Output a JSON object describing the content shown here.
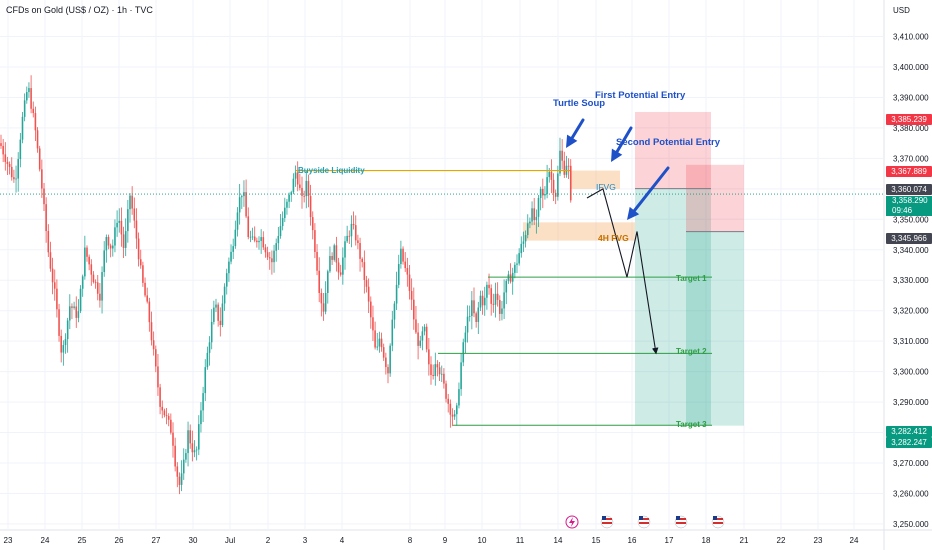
{
  "header": {
    "title": "CFDs on Gold (US$ / OZ) · 1h · TVC",
    "currency": "USD"
  },
  "price_tags": {
    "tag1": "3,385.239",
    "tag2": "3,367.889",
    "tag3": "3,360.074",
    "tag4_price": "3,358.290",
    "tag4_time": "09:46",
    "tag5": "3,345.966",
    "tag6": "3,282.412",
    "tag7": "3,282.247"
  },
  "colors": {
    "up": "#26a69a",
    "down": "#ef5350",
    "annotation_blue": "#1e50c8",
    "liquidity": "#e0a800",
    "target_line": "#2e9e44",
    "grid": "#f0f3fa",
    "axis_text": "#131722"
  },
  "chart_data": {
    "type": "candlestick",
    "title": "CFDs on Gold (US$ / OZ) · 1h · TVC",
    "ylim": [
      3248,
      3422
    ],
    "y_ticks": [
      3250,
      3260,
      3270,
      3280,
      3290,
      3300,
      3310,
      3320,
      3330,
      3340,
      3350,
      3360,
      3370,
      3380,
      3390,
      3400,
      3410
    ],
    "x_ticks": [
      "23",
      "24",
      "25",
      "26",
      "27",
      "30",
      "Jul",
      "2",
      "3",
      "4",
      "8",
      "9",
      "10",
      "11",
      "14",
      "15",
      "16",
      "17",
      "18",
      "21",
      "22",
      "23",
      "24"
    ],
    "price_path": [
      [
        0,
        3375
      ],
      [
        8,
        3368
      ],
      [
        15,
        3362
      ],
      [
        22,
        3382
      ],
      [
        28,
        3394
      ],
      [
        35,
        3380
      ],
      [
        42,
        3360
      ],
      [
        48,
        3340
      ],
      [
        55,
        3325
      ],
      [
        62,
        3305
      ],
      [
        70,
        3322
      ],
      [
        78,
        3318
      ],
      [
        85,
        3340
      ],
      [
        92,
        3332
      ],
      [
        100,
        3325
      ],
      [
        106,
        3345
      ],
      [
        112,
        3340
      ],
      [
        118,
        3352
      ],
      [
        124,
        3340
      ],
      [
        130,
        3358
      ],
      [
        136,
        3345
      ],
      [
        142,
        3330
      ],
      [
        148,
        3320
      ],
      [
        154,
        3305
      ],
      [
        160,
        3290
      ],
      [
        166,
        3285
      ],
      [
        172,
        3280
      ],
      [
        176,
        3268
      ],
      [
        180,
        3262
      ],
      [
        184,
        3270
      ],
      [
        188,
        3280
      ],
      [
        192,
        3275
      ],
      [
        196,
        3272
      ],
      [
        200,
        3285
      ],
      [
        205,
        3300
      ],
      [
        210,
        3312
      ],
      [
        215,
        3322
      ],
      [
        220,
        3315
      ],
      [
        226,
        3332
      ],
      [
        232,
        3340
      ],
      [
        238,
        3355
      ],
      [
        243,
        3360
      ],
      [
        248,
        3345
      ],
      [
        254,
        3342
      ],
      [
        260,
        3345
      ],
      [
        266,
        3340
      ],
      [
        272,
        3336
      ],
      [
        278,
        3345
      ],
      [
        284,
        3352
      ],
      [
        290,
        3358
      ],
      [
        296,
        3366
      ],
      [
        302,
        3356
      ],
      [
        307,
        3362
      ],
      [
        312,
        3348
      ],
      [
        316,
        3338
      ],
      [
        320,
        3325
      ],
      [
        324,
        3320
      ],
      [
        328,
        3335
      ],
      [
        334,
        3340
      ],
      [
        340,
        3332
      ],
      [
        346,
        3343
      ],
      [
        352,
        3348
      ],
      [
        356,
        3344
      ],
      [
        360,
        3338
      ],
      [
        366,
        3328
      ],
      [
        372,
        3315
      ],
      [
        376,
        3305
      ],
      [
        380,
        3312
      ],
      [
        384,
        3305
      ],
      [
        388,
        3300
      ],
      [
        392,
        3318
      ],
      [
        396,
        3325
      ],
      [
        400,
        3340
      ],
      [
        404,
        3335
      ],
      [
        408,
        3330
      ],
      [
        412,
        3322
      ],
      [
        416,
        3312
      ],
      [
        420,
        3308
      ],
      [
        424,
        3315
      ],
      [
        428,
        3302
      ],
      [
        432,
        3298
      ],
      [
        436,
        3305
      ],
      [
        440,
        3300
      ],
      [
        444,
        3295
      ],
      [
        448,
        3290
      ],
      [
        452,
        3286
      ],
      [
        456,
        3284
      ],
      [
        460,
        3300
      ],
      [
        464,
        3310
      ],
      [
        468,
        3318
      ],
      [
        472,
        3322
      ],
      [
        476,
        3315
      ],
      [
        480,
        3325
      ],
      [
        484,
        3322
      ],
      [
        488,
        3330
      ],
      [
        492,
        3320
      ],
      [
        496,
        3328
      ],
      [
        500,
        3318
      ],
      [
        504,
        3326
      ],
      [
        508,
        3330
      ],
      [
        512,
        3332
      ],
      [
        516,
        3335
      ],
      [
        520,
        3340
      ],
      [
        524,
        3343
      ],
      [
        528,
        3350
      ],
      [
        532,
        3352
      ],
      [
        536,
        3348
      ],
      [
        540,
        3360
      ],
      [
        544,
        3356
      ],
      [
        548,
        3368
      ],
      [
        552,
        3362
      ],
      [
        556,
        3358
      ],
      [
        560,
        3372
      ],
      [
        564,
        3366
      ],
      [
        568,
        3370
      ],
      [
        572,
        3348
      ]
    ],
    "annotations": [
      {
        "text": "Turtle Soup"
      },
      {
        "text": "First Potential Entry"
      },
      {
        "text": "Second Potential Entry"
      },
      {
        "text": "Buyside Liquidity"
      },
      {
        "text": "IFVG"
      },
      {
        "text": "4H FVG"
      },
      {
        "text": "Target 1",
        "price": 3331
      },
      {
        "text": "Target 2",
        "price": 3306
      },
      {
        "text": "Target 3",
        "price": 3282.4
      }
    ],
    "levels": {
      "buyside_liquidity": 3366,
      "ifvg": [
        3360,
        3366
      ],
      "fvg_4h": [
        3343,
        3349
      ],
      "short1": {
        "entry": 3360.074,
        "stop": 3385.239,
        "target": 3282.412
      },
      "short2": {
        "entry": 3345.966,
        "stop": 3367.889,
        "target": 3282.247
      },
      "projection": [
        3357,
        3360,
        3331,
        3346,
        3306
      ]
    },
    "current_price": 3358.29,
    "grid": true
  }
}
